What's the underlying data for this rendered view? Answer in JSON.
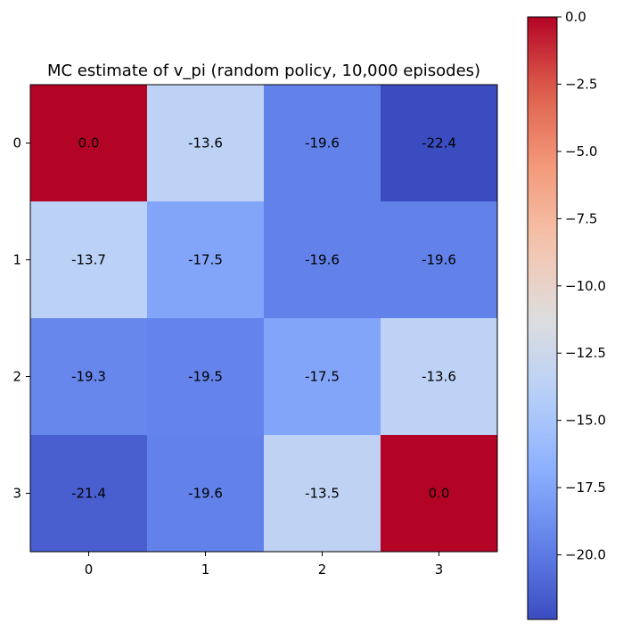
{
  "chart_data": {
    "type": "heatmap",
    "title": "MC estimate of v_pi (random policy, 10,000 episodes)",
    "xlabel": "",
    "ylabel": "",
    "x_ticks": [
      "0",
      "1",
      "2",
      "3"
    ],
    "y_ticks": [
      "0",
      "1",
      "2",
      "3"
    ],
    "values": [
      [
        0.0,
        -13.6,
        -19.6,
        -22.4
      ],
      [
        -13.7,
        -17.5,
        -19.6,
        -19.6
      ],
      [
        -19.3,
        -19.5,
        -17.5,
        -13.6
      ],
      [
        -21.4,
        -19.6,
        -13.5,
        0.0
      ]
    ],
    "cell_labels": [
      [
        "0.0",
        "-13.6",
        "-19.6",
        "-22.4"
      ],
      [
        "-13.7",
        "-17.5",
        "-19.6",
        "-19.6"
      ],
      [
        "-19.3",
        "-19.5",
        "-17.5",
        "-13.6"
      ],
      [
        "-21.4",
        "-19.6",
        "-13.5",
        "0.0"
      ]
    ],
    "colormap": "coolwarm",
    "colorbar": {
      "min": -22.4,
      "max": 0.0,
      "ticks": [
        0.0,
        -2.5,
        -5.0,
        -7.5,
        -10.0,
        -12.5,
        -15.0,
        -17.5,
        -20.0
      ],
      "tick_labels": [
        "0.0",
        "−2.5",
        "−5.0",
        "−7.5",
        "−10.0",
        "−12.5",
        "−15.0",
        "−17.5",
        "−20.0"
      ]
    },
    "grid": false,
    "legend": "none"
  }
}
